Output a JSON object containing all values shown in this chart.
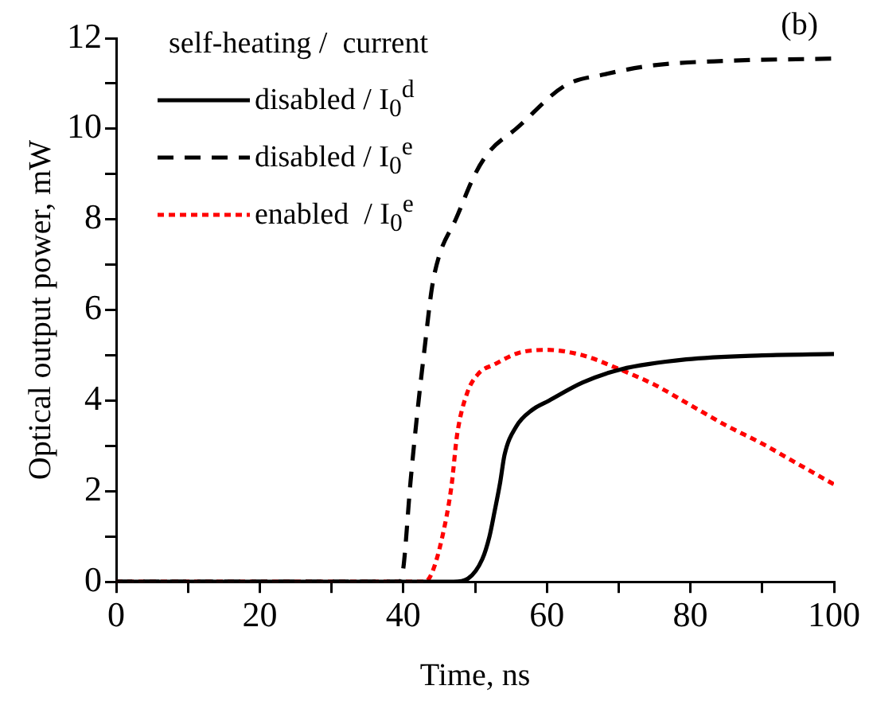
{
  "chart_data": {
    "type": "line",
    "xlabel": "Time, ns",
    "ylabel": "Optical output power, mW",
    "legend_title": "self-heating /  current",
    "annotations": [
      "(b)"
    ],
    "xlim": [
      0,
      100
    ],
    "xticks": [
      0,
      {
        "value": 10,
        "label": null
      },
      20,
      {
        "value": 30,
        "label": null
      },
      40,
      {
        "value": 50,
        "label": null
      },
      60,
      {
        "value": 70,
        "label": null
      },
      80,
      {
        "value": 90,
        "label": null
      },
      100
    ],
    "ylim": [
      0,
      12
    ],
    "yticks": [
      0,
      {
        "value": 1,
        "label": null
      },
      2,
      {
        "value": 3,
        "label": null
      },
      4,
      {
        "value": 5,
        "label": null
      },
      6,
      {
        "value": 7,
        "label": null
      },
      8,
      {
        "value": 9,
        "label": null
      },
      10,
      {
        "value": 11,
        "label": null
      },
      12
    ],
    "grid": false,
    "legend": "top left",
    "marker": "none",
    "series": [
      {
        "name": "disabled / I$_{0}$$^{d}$",
        "color": "#000000",
        "line_style": "solid",
        "x": [
          0,
          47,
          49,
          51,
          52,
          52.7,
          53.5,
          54.1,
          55.7,
          58,
          60.3,
          65,
          70.3,
          79.4,
          90,
          100
        ],
        "values": [
          0,
          0,
          0.07,
          0.5,
          1.0,
          1.54,
          2.2,
          2.8,
          3.42,
          3.8,
          4.0,
          4.4,
          4.69,
          4.91,
          5.0,
          5.03
        ]
      },
      {
        "name": "disabled / I$_{0}$$^{e}$",
        "color": "#000000",
        "line_style": "dashed",
        "x": [
          0,
          39.5,
          40,
          41,
          42,
          43,
          44,
          45,
          47.3,
          50,
          52,
          55.7,
          62.6,
          68,
          74.8,
          85,
          100
        ],
        "values": [
          0,
          0,
          0.3,
          2.2,
          3.8,
          5.2,
          6.5,
          7.2,
          8,
          9,
          9.5,
          10,
          10.96,
          11.2,
          11.4,
          11.5,
          11.55
        ]
      },
      {
        "name": "enabled  / I$_{0}$$^{e}$",
        "color": "#ff0000",
        "line_style": "dotted",
        "x": [
          0,
          43,
          44,
          45.4,
          46.7,
          47.5,
          48.9,
          50.5,
          52.7,
          56,
          60,
          65,
          70,
          75,
          80,
          85,
          90,
          95,
          100
        ],
        "values": [
          0,
          0,
          0.2,
          0.97,
          2.1,
          3.25,
          4.17,
          4.6,
          4.8,
          5.05,
          5.12,
          5.0,
          4.7,
          4.35,
          3.9,
          3.45,
          3.05,
          2.6,
          2.15
        ]
      }
    ]
  }
}
